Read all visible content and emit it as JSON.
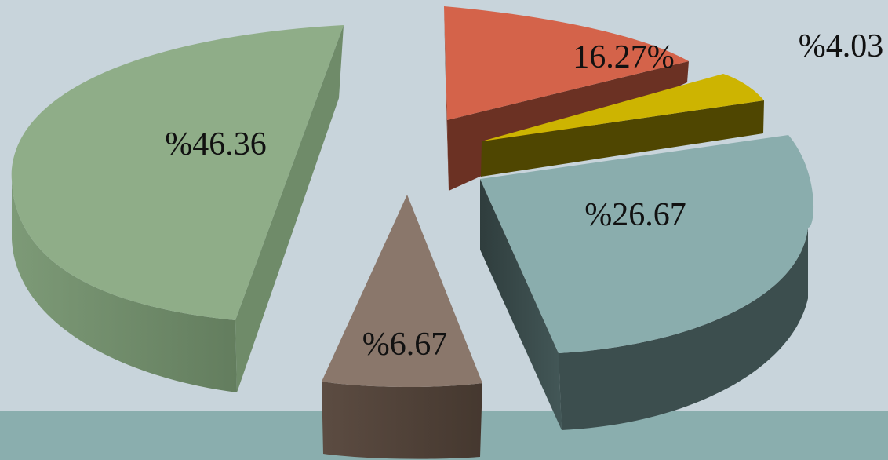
{
  "chart_data": {
    "type": "pie",
    "style": "3d-exploded",
    "slices": [
      {
        "label": "%46.36",
        "value": 46.36,
        "color": "#8fad88",
        "side_color": "#6e8a68"
      },
      {
        "label": "16.27%",
        "value": 16.27,
        "color": "#d4634a",
        "side_color": "#6b3123"
      },
      {
        "label": "%4.03",
        "value": 4.03,
        "color": "#cdb401",
        "side_color": "#4f4601"
      },
      {
        "label": "%26.67",
        "value": 26.67,
        "color": "#8aadad",
        "side_color": "#3a4a4a"
      },
      {
        "label": "%6.67",
        "value": 6.67,
        "color": "#8a776b",
        "side_color": "#4e4038"
      }
    ]
  }
}
